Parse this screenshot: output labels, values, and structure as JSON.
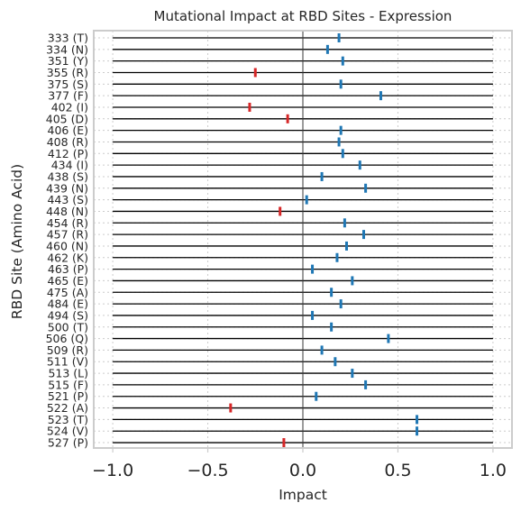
{
  "chart_data": {
    "type": "scatter",
    "title": "Mutational Impact at RBD Sites - Expression",
    "xlabel": "Impact",
    "ylabel": "RBD Site (Amino Acid)",
    "xlim": [
      -1.1,
      1.1
    ],
    "x_ticks": [
      -1.0,
      -0.5,
      0.0,
      0.5,
      1.0
    ],
    "x_tick_labels": [
      "−1.0",
      "−0.5",
      "0.0",
      "0.5",
      "1.0"
    ],
    "grid": true,
    "colors": {
      "positive": "#1f77b4",
      "negative": "#d62728",
      "line": "#000000",
      "grid": "#cccccc",
      "frame": "#cccccc"
    },
    "categories": [
      "333 (T)",
      "334 (N)",
      "351 (Y)",
      "355 (R)",
      "375 (S)",
      "377 (F)",
      "402 (I)",
      "405 (D)",
      "406 (E)",
      "408 (R)",
      "412 (P)",
      "434 (I)",
      "438 (S)",
      "439 (N)",
      "443 (S)",
      "448 (N)",
      "454 (R)",
      "457 (R)",
      "460 (N)",
      "462 (K)",
      "463 (P)",
      "465 (E)",
      "475 (A)",
      "484 (E)",
      "494 (S)",
      "500 (T)",
      "506 (Q)",
      "509 (R)",
      "511 (V)",
      "513 (L)",
      "515 (F)",
      "521 (P)",
      "522 (A)",
      "523 (T)",
      "524 (V)",
      "527 (P)"
    ],
    "values": [
      0.19,
      0.13,
      0.21,
      -0.25,
      0.2,
      0.41,
      -0.28,
      -0.08,
      0.2,
      0.19,
      0.21,
      0.3,
      0.1,
      0.33,
      0.02,
      -0.12,
      0.22,
      0.32,
      0.23,
      0.18,
      0.05,
      0.26,
      0.15,
      0.2,
      0.05,
      0.15,
      0.45,
      0.1,
      0.17,
      0.26,
      0.33,
      0.07,
      -0.38,
      0.6,
      0.6,
      -0.1
    ],
    "line_range": [
      -1.0,
      1.0
    ]
  }
}
